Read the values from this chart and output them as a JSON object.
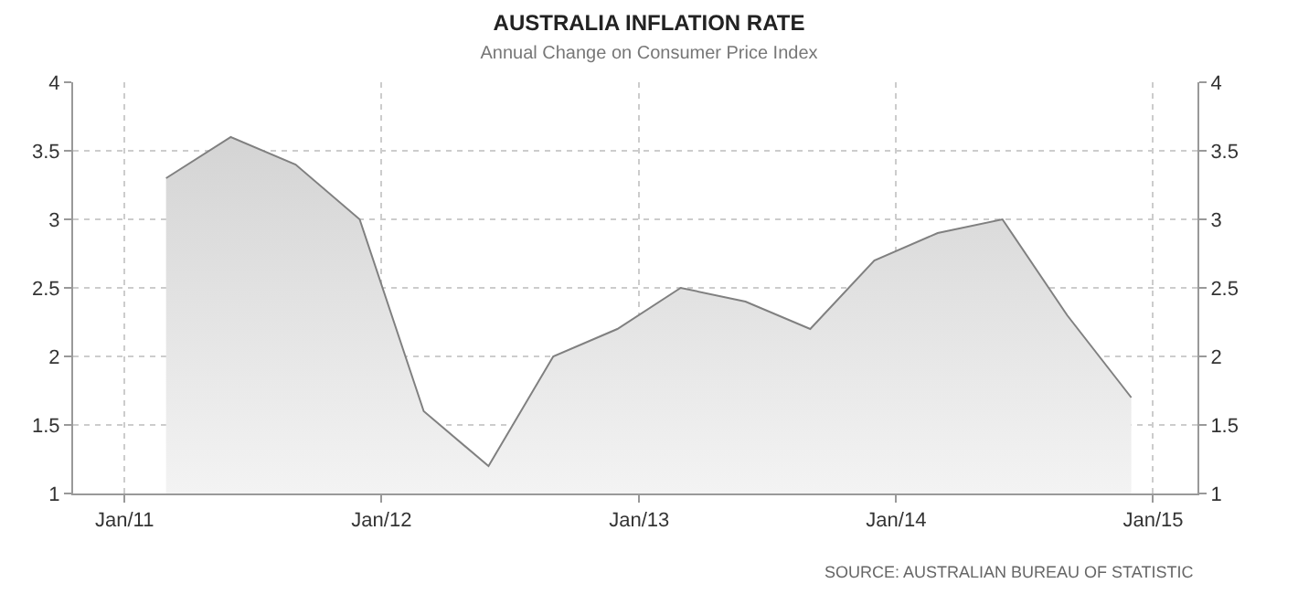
{
  "chart_data": {
    "type": "area",
    "title": "AUSTRALIA INFLATION RATE",
    "subtitle": "Annual Change on Consumer Price Index",
    "x": [
      "2011-03",
      "2011-06",
      "2011-09",
      "2011-12",
      "2012-03",
      "2012-06",
      "2012-09",
      "2012-12",
      "2013-03",
      "2013-06",
      "2013-09",
      "2013-12",
      "2014-03",
      "2014-06",
      "2014-09",
      "2014-12"
    ],
    "series": [
      {
        "color": "#808080",
        "values": [
          3.3,
          3.6,
          3.4,
          3.0,
          1.6,
          1.2,
          2.0,
          2.2,
          2.5,
          2.4,
          2.2,
          2.7,
          2.9,
          3.0,
          2.3,
          1.7
        ]
      }
    ],
    "xlim": [
      "2010-10-20",
      "2015-03-05"
    ],
    "xticks": [
      {
        "value": "2011-01-01",
        "label": "Jan/11"
      },
      {
        "value": "2012-01-01",
        "label": "Jan/12"
      },
      {
        "value": "2013-01-01",
        "label": "Jan/13"
      },
      {
        "value": "2014-01-01",
        "label": "Jan/14"
      },
      {
        "value": "2015-01-01",
        "label": "Jan/15"
      }
    ],
    "ylim": [
      1,
      4
    ],
    "yticks": [
      1,
      1.5,
      2,
      2.5,
      3,
      3.5,
      4
    ],
    "y2lim": [
      1,
      4
    ],
    "y2ticks": [
      1,
      1.5,
      2,
      2.5,
      3,
      3.5,
      4
    ],
    "grid": true,
    "annotations": [
      "SOURCE: AUSTRALIAN BUREAU OF STATISTIC"
    ]
  }
}
